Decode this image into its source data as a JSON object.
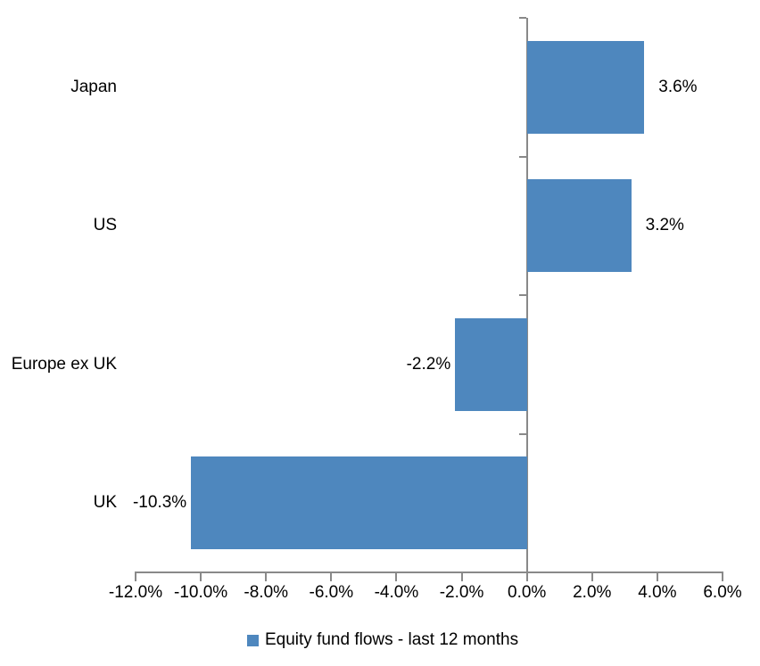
{
  "chart_data": {
    "type": "bar",
    "orientation": "horizontal",
    "title": "",
    "categories": [
      "Japan",
      "US",
      "Europe ex UK",
      "UK"
    ],
    "series": [
      {
        "name": "Equity fund flows - last 12 months",
        "values": [
          3.6,
          3.2,
          -2.2,
          -10.3
        ],
        "labels": [
          "3.6%",
          "3.2%",
          "-2.2%",
          "-10.3%"
        ]
      }
    ],
    "xlim": [
      -12,
      6
    ],
    "x_tick_values": [
      -12,
      -10,
      -8,
      -6,
      -4,
      -2,
      0,
      2,
      4,
      6
    ],
    "x_tick_labels": [
      "-12.0%",
      "-10.0%",
      "-8.0%",
      "-6.0%",
      "-4.0%",
      "-2.0%",
      "0.0%",
      "2.0%",
      "4.0%",
      "6.0%"
    ],
    "grid": false,
    "legend_position": "bottom",
    "colors": {
      "bar": "#4E87BE",
      "axis": "#898989",
      "text": "#000000",
      "background": "#FFFFFF"
    }
  }
}
